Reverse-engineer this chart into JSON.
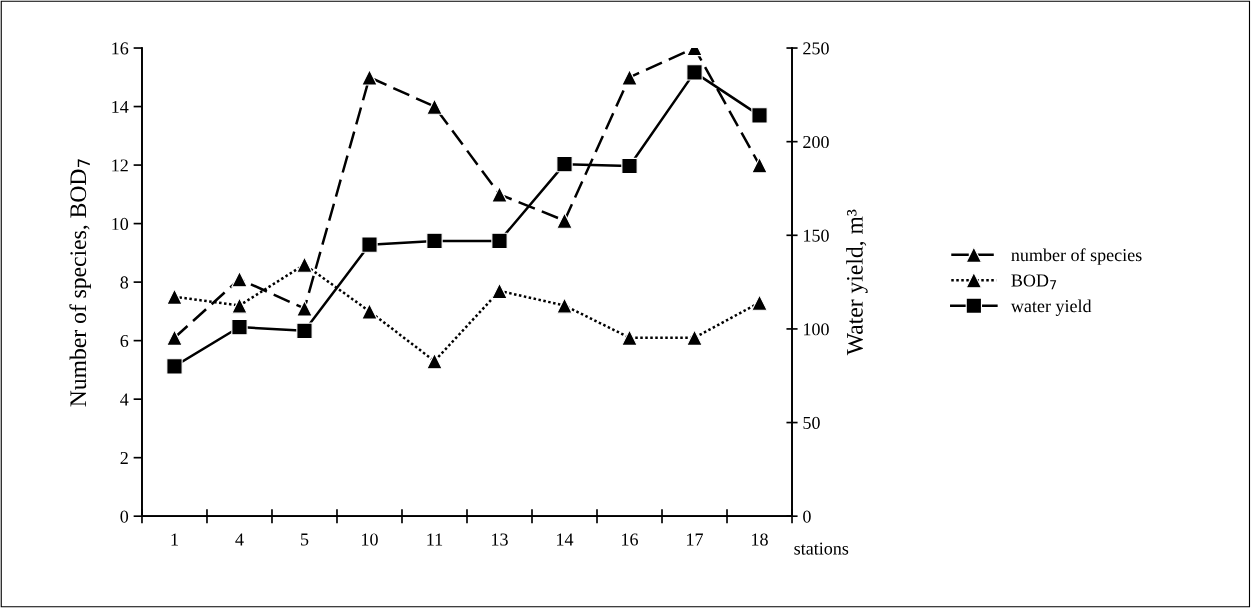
{
  "chart_data": {
    "type": "line",
    "xlabel": "stations",
    "ylabel": "Number of species, BOD$_{7}$",
    "y2label": "Water yield, m³",
    "categories": [
      "1",
      "4",
      "5",
      "10",
      "11",
      "13",
      "14",
      "16",
      "17",
      "18"
    ],
    "series": [
      {
        "name": "number of species",
        "color": "#000000",
        "marker": "triangle",
        "line_style": "dashed",
        "values": [
          6.1,
          8.1,
          7.1,
          15,
          14,
          11,
          10.1,
          15,
          16,
          12
        ]
      },
      {
        "name": "BOD$_{7}$",
        "color": "#000000",
        "marker": "triangle",
        "line_style": "dotted",
        "values": [
          7.5,
          7.2,
          8.6,
          7.0,
          5.3,
          7.7,
          7.2,
          6.1,
          6.1,
          7.3
        ]
      },
      {
        "name": "water yield",
        "color": "#000000",
        "marker": "square",
        "line_style": "solid",
        "axis": "y2",
        "values": [
          80,
          101,
          99,
          145,
          147,
          147,
          188,
          187,
          237,
          214
        ]
      }
    ],
    "ylim": [
      0,
      16
    ],
    "yticks": [
      0,
      2,
      4,
      6,
      8,
      10,
      12,
      14,
      16
    ],
    "y2lim": [
      0,
      250
    ],
    "y2ticks": [
      0,
      50,
      100,
      150,
      200,
      250
    ],
    "grid": false,
    "legend": "right"
  }
}
